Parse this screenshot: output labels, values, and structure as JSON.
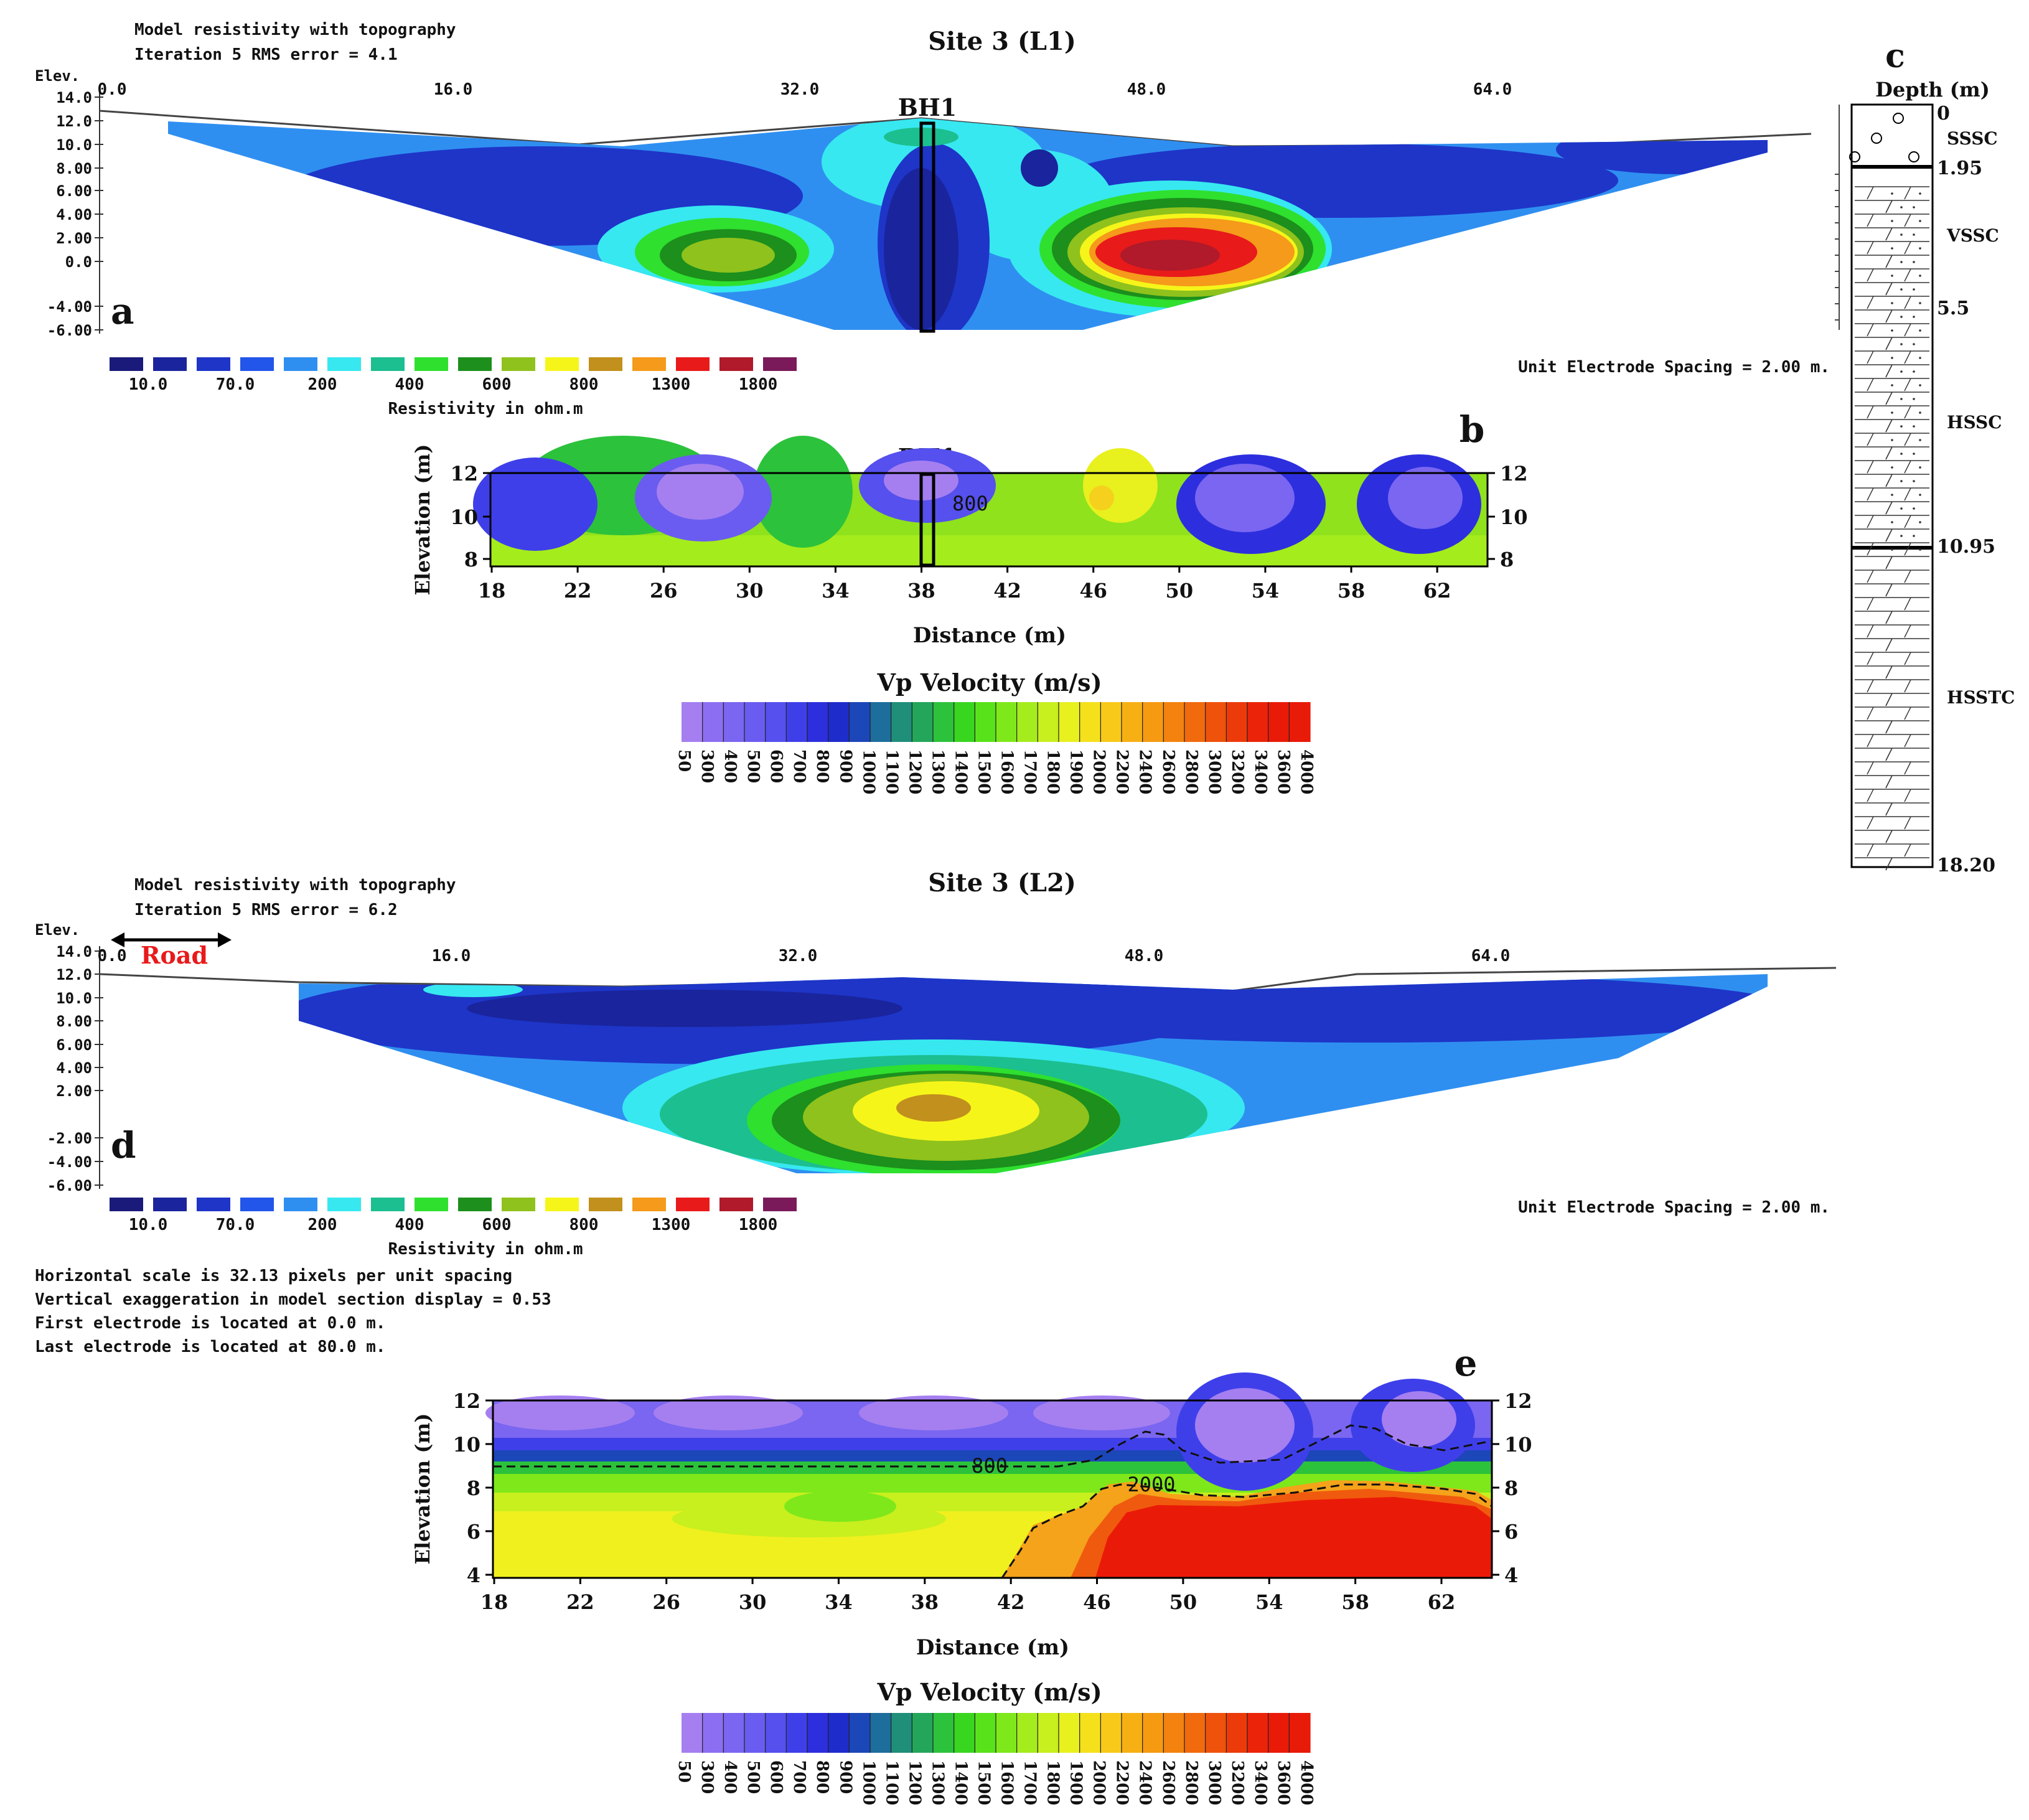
{
  "panel_a": {
    "title": "Site 3 (L1)",
    "header1": "Model resistivity with topography",
    "header2": "Iteration 5 RMS error = 4.1",
    "elev_label": "Elev.",
    "elev_ticks": [
      "14.0",
      "12.0",
      "10.0",
      "8.00",
      "6.00",
      "4.00",
      "2.00",
      "0.0",
      "-4.00",
      "-6.00"
    ],
    "x_ticks": [
      "0.0",
      "16.0",
      "32.0",
      "48.0",
      "64.0"
    ],
    "borehole": "BH1",
    "letter": "a",
    "electrode_spacing": "Unit Electrode Spacing = 2.00 m.",
    "scale_labels": [
      "10.0",
      "70.0",
      "200",
      "400",
      "600",
      "800",
      "1300",
      "1800"
    ],
    "scale_title": "Resistivity in ohm.m"
  },
  "panel_b": {
    "letter": "b",
    "borehole": "BH1",
    "ylabel": "Elevation (m)",
    "xlabel": "Distance (m)",
    "x_ticks": [
      "18",
      "22",
      "26",
      "30",
      "34",
      "38",
      "42",
      "46",
      "50",
      "54",
      "58",
      "62"
    ],
    "y_ticks": [
      "12",
      "10",
      "8"
    ],
    "contour_label": "800",
    "colorbar_title": "Vp Velocity (m/s)"
  },
  "panel_c": {
    "letter": "c",
    "title": "Depth (m)",
    "depths": [
      "0",
      "1.95",
      "5.5",
      "10.95",
      "18.20"
    ],
    "units": [
      "SSSC",
      "VSSC",
      "HSSC",
      "HSSTC"
    ]
  },
  "panel_d": {
    "title": "Site 3 (L2)",
    "header1": "Model resistivity with topography",
    "header2": "Iteration 5 RMS error = 6.2",
    "elev_label": "Elev.",
    "elev_ticks": [
      "14.0",
      "12.0",
      "10.0",
      "8.00",
      "6.00",
      "4.00",
      "2.00",
      "-2.00",
      "-4.00",
      "-6.00"
    ],
    "x_ticks": [
      "0.0",
      "16.0",
      "32.0",
      "48.0",
      "64.0"
    ],
    "road_label": "Road",
    "letter": "d",
    "electrode_spacing": "Unit Electrode Spacing = 2.00 m.",
    "scale_labels": [
      "10.0",
      "70.0",
      "200",
      "400",
      "600",
      "800",
      "1300",
      "1800"
    ],
    "scale_title": "Resistivity in ohm.m",
    "notes": [
      "Horizontal scale is 32.13 pixels per unit spacing",
      "Vertical exaggeration in model section display = 0.53",
      "First electrode is located at 0.0  m.",
      "Last electrode is located at 80.0 m."
    ]
  },
  "panel_e": {
    "letter": "e",
    "ylabel": "Elevation (m)",
    "xlabel": "Distance (m)",
    "x_ticks": [
      "18",
      "22",
      "26",
      "30",
      "34",
      "38",
      "42",
      "46",
      "50",
      "54",
      "58",
      "62"
    ],
    "y_ticks": [
      "12",
      "10",
      "8",
      "6",
      "4"
    ],
    "contour_labels": [
      "800",
      "2000"
    ],
    "colorbar_title": "Vp Velocity (m/s)"
  },
  "velocity_scale": [
    "50",
    "300",
    "400",
    "500",
    "600",
    "700",
    "800",
    "900",
    "1000",
    "1100",
    "1200",
    "1300",
    "1400",
    "1500",
    "1600",
    "1700",
    "1800",
    "1900",
    "2000",
    "2200",
    "2400",
    "2600",
    "2800",
    "3000",
    "3200",
    "3400",
    "3600",
    "4000"
  ],
  "velocity_colors": [
    "#a57ff0",
    "#8c6ef2",
    "#7a66f0",
    "#6a5cf0",
    "#5550ee",
    "#3f3fea",
    "#2d2fde",
    "#1f2ccc",
    "#1b47b8",
    "#1d6e9c",
    "#1f8f7a",
    "#23a65a",
    "#2cc23c",
    "#39d61f",
    "#58e21a",
    "#7ee81a",
    "#a5ec1c",
    "#c8ef1e",
    "#e8f01e",
    "#f5e01c",
    "#f8c918",
    "#f7b014",
    "#f59a11",
    "#f3820f",
    "#f16a0d",
    "#ef520b",
    "#ed3a0a",
    "#eb2409",
    "#ea1a08",
    "#e81a08"
  ],
  "resistivity_colors": [
    "#1a1a7a",
    "#1a249c",
    "#1e35c8",
    "#2255ea",
    "#2f8ff0",
    "#37e8f0",
    "#1cbf8f",
    "#2fe02f",
    "#1c8f1c",
    "#8fc21c",
    "#f5f51a",
    "#c2901c",
    "#f59a1a",
    "#e81a1a",
    "#b01a2a",
    "#7a1a5a"
  ]
}
